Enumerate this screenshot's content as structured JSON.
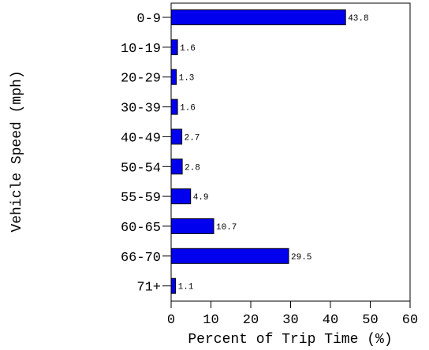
{
  "chart_data": {
    "type": "bar",
    "orientation": "horizontal",
    "categories": [
      "0-9",
      "10-19",
      "20-29",
      "30-39",
      "40-49",
      "50-54",
      "55-59",
      "60-65",
      "66-70",
      "71+"
    ],
    "values": [
      43.8,
      1.6,
      1.3,
      1.6,
      2.7,
      2.8,
      4.9,
      10.7,
      29.5,
      1.1
    ],
    "value_labels": [
      "43.8",
      "1.6",
      "1.3",
      "1.6",
      "2.7",
      "2.8",
      "4.9",
      "10.7",
      "29.5",
      "1.1"
    ],
    "xlabel": "Percent of Trip Time (%)",
    "ylabel": "Vehicle Speed (mph)",
    "xlim": [
      0,
      60
    ],
    "xticks": [
      "0",
      "10",
      "20",
      "30",
      "40",
      "50",
      "60"
    ],
    "grid": false,
    "bar_color": "#0000ee"
  }
}
